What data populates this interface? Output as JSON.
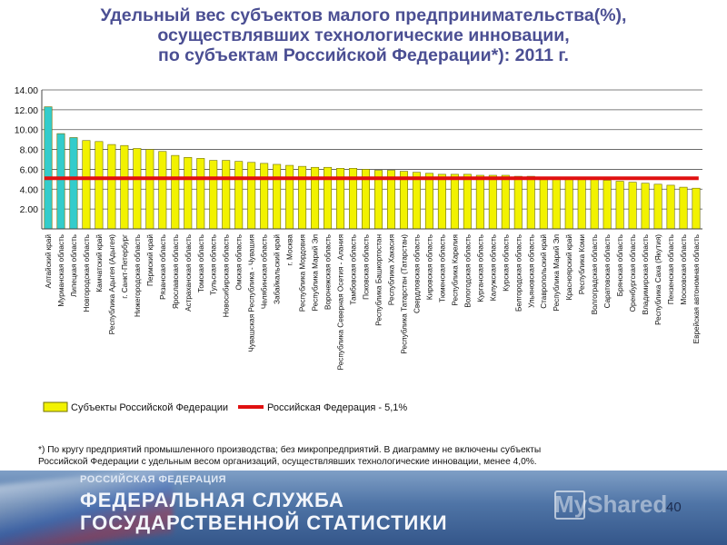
{
  "title_lines": [
    "Удельный вес субъектов малого предпринимательства(%),",
    "осуществлявших технологические инновации,",
    "по субъектам Российской Федерации*): 2011 г."
  ],
  "footnote": {
    "line1": "*) По кругу предприятий промышленного производства; без микропредприятий. В диаграмму не включены субъекты",
    "line2": "Российской Федерации с удельным весом организаций, осуществлявших технологические инновации, менее 4,0%."
  },
  "banner": {
    "small": "РОССИЙСКАЯ ФЕДЕРАЦИЯ",
    "line1": "ФЕДЕРАЛЬНАЯ СЛУЖБА",
    "line2": "ГОСУДАРСТВЕННОЙ СТАТИСТИКИ",
    "watermark": "MyShared"
  },
  "page_number": "40",
  "colors": {
    "title": "#4b4f93",
    "bar_yellow": "#f2f200",
    "bar_cyan": "#33cccc",
    "bar_stroke": "#6f6f00",
    "reference_line": "#e01010"
  },
  "chart_data": {
    "type": "bar",
    "ylim": [
      0,
      14
    ],
    "yticks": [
      "2.00",
      "4.00",
      "6.00",
      "8.00",
      "10.00",
      "12.00",
      "14.00"
    ],
    "ytick_values": [
      2,
      4,
      6,
      8,
      10,
      12,
      14
    ],
    "grid": true,
    "legend": {
      "placement": "bottom",
      "bars_label": "Субъекты Российской Федерации",
      "line_label": "Российская Федерация - 5,1%"
    },
    "reference_value": 5.1,
    "highlighted_count": 3,
    "categories": [
      "Алтайский край",
      "Мурманская область",
      "Липецкая область",
      "Новгородская область",
      "Камчатский край",
      "Республика Адыгея (Адыгея)",
      "г. Санкт-Петербург",
      "Нижегородская область",
      "Пермский край",
      "Рязанская область",
      "Ярославская область",
      "Астраханская область",
      "Томская область",
      "Тульская область",
      "Новосибирская область",
      "Омская область",
      "Чувашская Республика - Чувашия",
      "Челябинская область",
      "Забайкальский край",
      "г. Москва",
      "Республика Мордовия",
      "Республика Марий Эл",
      "Воронежская область",
      "Республика Северная Осетия - Алания",
      "Тамбовская область",
      "Псковская область",
      "Республика Башкортостан",
      "Республика Хакасия",
      "Республика Татарстан (Татарстан)",
      "Свердловская область",
      "Кировская область",
      "Тюменская область",
      "Республика Карелия",
      "Вологодская область",
      "Курганская область",
      "Калужская область",
      "Курская область",
      "Белгородская область",
      "Ульяновская область",
      "Ставропольский край",
      "Республика Марий Эл",
      "Красноярский край",
      "Республика Коми",
      "Волгоградская область",
      "Саратовская область",
      "Брянская область",
      "Оренбургская область",
      "Владимирская область",
      "Республика Саха (Якутия)",
      "Пензенская область",
      "Московская область",
      "Еврейская автономная область"
    ],
    "values": [
      12.3,
      9.6,
      9.2,
      8.9,
      8.8,
      8.5,
      8.4,
      8.1,
      8.0,
      7.8,
      7.4,
      7.2,
      7.1,
      6.9,
      6.9,
      6.8,
      6.7,
      6.6,
      6.5,
      6.4,
      6.3,
      6.2,
      6.2,
      6.1,
      6.1,
      6.0,
      5.9,
      5.9,
      5.8,
      5.7,
      5.6,
      5.5,
      5.5,
      5.5,
      5.4,
      5.4,
      5.4,
      5.3,
      5.3,
      5.2,
      5.2,
      5.2,
      5.1,
      5.0,
      4.9,
      4.8,
      4.7,
      4.6,
      4.5,
      4.4,
      4.2,
      4.1
    ]
  }
}
